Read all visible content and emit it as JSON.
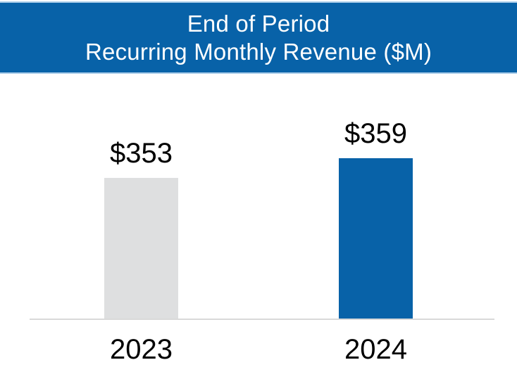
{
  "banner": {
    "line1": "End of Period",
    "line2": "Recurring Monthly Revenue ($M)"
  },
  "chart_data": {
    "type": "bar",
    "title": "End of Period Recurring Monthly Revenue ($M)",
    "categories": [
      "2023",
      "2024"
    ],
    "values": [
      353,
      359
    ],
    "value_labels": [
      "$353",
      "$359"
    ],
    "series": [
      {
        "name": "End of Period Recurring Monthly Revenue ($M)",
        "values": [
          353,
          359
        ]
      }
    ],
    "bar_colors": [
      "#DEDFE0",
      "#0862A8"
    ],
    "xlabel": "",
    "ylabel": "",
    "ylim": [
      310,
      370
    ],
    "y_axis_visible": false,
    "gridlines": false,
    "legend": false,
    "value_labels_position": "above-bar"
  },
  "colors": {
    "banner_background": "#0862A8",
    "banner_edge": "#A9CCE9",
    "banner_text": "#FFFFFF",
    "axis_line": "#D9D9D9",
    "label_text": "#000000",
    "background": "#FFFFFF"
  }
}
